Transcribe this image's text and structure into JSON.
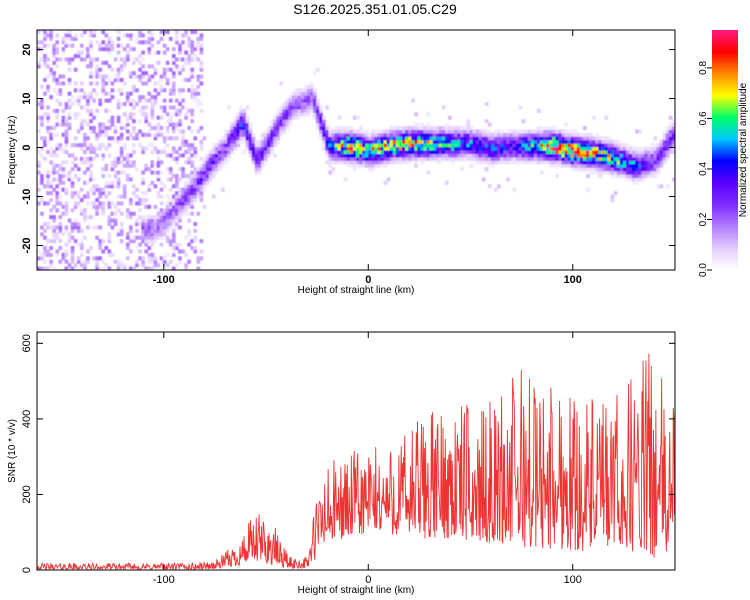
{
  "title": "S126.2025.351.01.05.C29",
  "colors": {
    "signal_line": "#ee3333",
    "frame": "#000000",
    "colormap": [
      "#ffffff",
      "#e2ccff",
      "#b27cff",
      "#7d2bff",
      "#5a00ff",
      "#0000ff",
      "#00c8ff",
      "#00ff66",
      "#ffff00",
      "#ff8800",
      "#ff0000",
      "#ff1a80"
    ]
  },
  "chart_data": [
    {
      "type": "heatmap",
      "name": "spectrogram",
      "xlabel": "Height of straight line (km)",
      "ylabel": "Frequency (Hz)",
      "xlim": [
        -162,
        150
      ],
      "ylim": [
        -25,
        24
      ],
      "xticks": [
        {
          "value": -100,
          "label": "-100"
        },
        {
          "value": 0,
          "label": "0"
        },
        {
          "value": 100,
          "label": "100"
        }
      ],
      "yticks": [
        {
          "value": -20,
          "label": "-20"
        },
        {
          "value": -10,
          "label": "-10"
        },
        {
          "value": 0,
          "label": "0"
        },
        {
          "value": 10,
          "label": "10"
        },
        {
          "value": 20,
          "label": "20"
        }
      ],
      "colorbar": {
        "label": "Normalized spectral amplitude",
        "range": [
          0,
          0.95
        ],
        "ticks": [
          {
            "value": 0,
            "label": "0.0"
          },
          {
            "value": 0.2,
            "label": "0.2"
          },
          {
            "value": 0.4,
            "label": "0.4"
          },
          {
            "value": 0.6,
            "label": "0.6"
          },
          {
            "value": 0.8,
            "label": "0.8"
          }
        ]
      },
      "noise_region_x": [
        -162,
        -82
      ],
      "ridge": [
        {
          "x": -105,
          "y": -17,
          "amp": 0.22
        },
        {
          "x": -95,
          "y": -13,
          "amp": 0.25
        },
        {
          "x": -85,
          "y": -8,
          "amp": 0.3
        },
        {
          "x": -78,
          "y": -4,
          "amp": 0.35
        },
        {
          "x": -70,
          "y": 0,
          "amp": 0.3
        },
        {
          "x": -62,
          "y": 5,
          "amp": 0.45
        },
        {
          "x": -55,
          "y": -3,
          "amp": 0.4
        },
        {
          "x": -45,
          "y": 4,
          "amp": 0.3
        },
        {
          "x": -38,
          "y": 8,
          "amp": 0.25
        },
        {
          "x": -28,
          "y": 10,
          "amp": 0.25
        },
        {
          "x": -20,
          "y": 0,
          "amp": 0.45
        },
        {
          "x": -10,
          "y": 0,
          "amp": 0.9
        },
        {
          "x": 0,
          "y": -1,
          "amp": 0.75
        },
        {
          "x": 10,
          "y": 0,
          "amp": 0.8
        },
        {
          "x": 20,
          "y": 0.5,
          "amp": 0.85
        },
        {
          "x": 30,
          "y": 0.5,
          "amp": 0.7
        },
        {
          "x": 40,
          "y": 0.5,
          "amp": 0.6
        },
        {
          "x": 50,
          "y": 0.5,
          "amp": 0.5
        },
        {
          "x": 60,
          "y": -0.5,
          "amp": 0.5
        },
        {
          "x": 70,
          "y": 0,
          "amp": 0.4
        },
        {
          "x": 80,
          "y": 0,
          "amp": 0.6
        },
        {
          "x": 90,
          "y": 0,
          "amp": 0.95
        },
        {
          "x": 100,
          "y": -1,
          "amp": 0.9
        },
        {
          "x": 110,
          "y": -1.5,
          "amp": 0.8
        },
        {
          "x": 120,
          "y": -2.5,
          "amp": 0.7
        },
        {
          "x": 130,
          "y": -4,
          "amp": 0.5
        },
        {
          "x": 140,
          "y": -3,
          "amp": 0.3
        },
        {
          "x": 148,
          "y": 2,
          "amp": 0.35
        }
      ]
    },
    {
      "type": "line",
      "name": "snr",
      "xlabel": "Height of straight line (km)",
      "ylabel": "SNR (10 * v/v)",
      "xlim": [
        -162,
        150
      ],
      "ylim": [
        0,
        630
      ],
      "xticks": [
        {
          "value": -100,
          "label": "-100"
        },
        {
          "value": 0,
          "label": "0"
        },
        {
          "value": 100,
          "label": "100"
        }
      ],
      "yticks": [
        {
          "value": 0,
          "label": "0"
        },
        {
          "value": 200,
          "label": "200"
        },
        {
          "value": 400,
          "label": "400"
        },
        {
          "value": 600,
          "label": "600"
        }
      ],
      "series": [
        {
          "name": "SNR",
          "envelope": {
            "x": [
              -162,
              -110,
              -85,
              -75,
              -65,
              -58,
              -52,
              -45,
              -38,
              -30,
              -25,
              -22,
              -15,
              -5,
              5,
              15,
              25,
              35,
              45,
              55,
              65,
              75,
              85,
              95,
              105,
              115,
              125,
              135,
              142,
              150
            ],
            "min": [
              2,
              2,
              2,
              3,
              10,
              20,
              20,
              10,
              4,
              5,
              30,
              60,
              80,
              90,
              100,
              90,
              80,
              85,
              80,
              75,
              70,
              60,
              55,
              55,
              50,
              60,
              55,
              40,
              30,
              40
            ],
            "max": [
              18,
              18,
              20,
              25,
              70,
              130,
              155,
              110,
              35,
              35,
              220,
              270,
              300,
              320,
              330,
              350,
              420,
              430,
              450,
              420,
              480,
              560,
              500,
              520,
              470,
              440,
              480,
              600,
              520,
              480
            ]
          }
        }
      ]
    }
  ]
}
